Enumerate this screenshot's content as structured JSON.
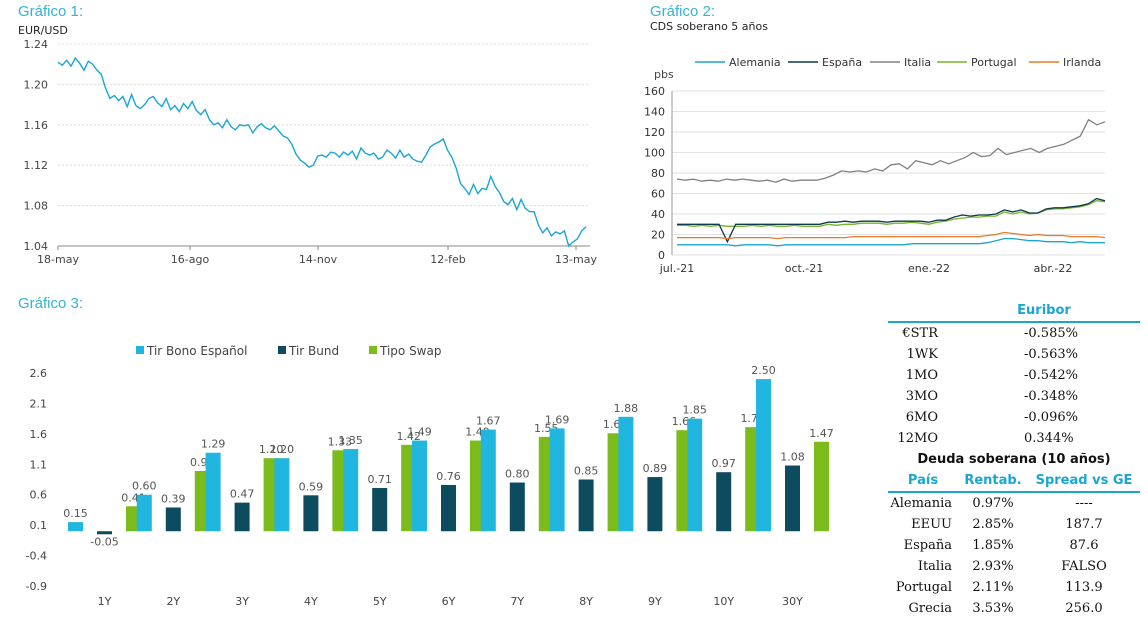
{
  "panels": {
    "g1_title": "Gráfico 1:",
    "g1_sub": "EUR/USD",
    "g2_title": "Gráfico 2:",
    "g2_sub": "CDS soberano 5 años",
    "g3_title": "Gráfico 3:"
  },
  "chart_data": [
    {
      "type": "line",
      "title": "EUR/USD",
      "y_ticks": [
        "1.24",
        "1.20",
        "1.16",
        "1.12",
        "1.08",
        "1.04"
      ],
      "ylim": [
        1.04,
        1.24
      ],
      "x_ticks": [
        "18-may",
        "16-ago",
        "14-nov",
        "12-feb",
        "13-may"
      ],
      "series": [
        {
          "color": "#1aa6d1",
          "values": [
            1.222,
            1.219,
            1.224,
            1.218,
            1.226,
            1.221,
            1.214,
            1.223,
            1.22,
            1.214,
            1.21,
            1.196,
            1.186,
            1.189,
            1.184,
            1.188,
            1.178,
            1.19,
            1.179,
            1.176,
            1.18,
            1.186,
            1.188,
            1.182,
            1.178,
            1.186,
            1.175,
            1.179,
            1.173,
            1.181,
            1.176,
            1.183,
            1.174,
            1.17,
            1.175,
            1.165,
            1.16,
            1.162,
            1.157,
            1.165,
            1.158,
            1.155,
            1.16,
            1.159,
            1.16,
            1.152,
            1.158,
            1.161,
            1.157,
            1.155,
            1.159,
            1.154,
            1.149,
            1.147,
            1.141,
            1.131,
            1.125,
            1.122,
            1.118,
            1.12,
            1.129,
            1.13,
            1.128,
            1.133,
            1.132,
            1.128,
            1.133,
            1.13,
            1.134,
            1.126,
            1.137,
            1.132,
            1.13,
            1.132,
            1.126,
            1.128,
            1.135,
            1.132,
            1.127,
            1.135,
            1.128,
            1.131,
            1.126,
            1.124,
            1.123,
            1.13,
            1.138,
            1.141,
            1.143,
            1.146,
            1.135,
            1.128,
            1.117,
            1.102,
            1.097,
            1.091,
            1.101,
            1.092,
            1.097,
            1.096,
            1.109,
            1.099,
            1.093,
            1.084,
            1.081,
            1.087,
            1.076,
            1.086,
            1.077,
            1.074,
            1.074,
            1.061,
            1.053,
            1.058,
            1.05,
            1.054,
            1.052,
            1.055,
            1.04,
            1.044,
            1.047,
            1.055,
            1.059
          ]
        }
      ]
    },
    {
      "type": "line",
      "title": "CDS soberano 5 años",
      "ylabel": "pbs",
      "y_ticks": [
        "160",
        "140",
        "120",
        "100",
        "80",
        "60",
        "40",
        "20",
        "0"
      ],
      "ylim": [
        0,
        160
      ],
      "x_ticks": [
        "jul.-21",
        "oct.-21",
        "ene.-22",
        "abr.-22"
      ],
      "series": [
        {
          "name": "Alemania",
          "color": "#1aa6d1",
          "values": [
            10,
            10,
            10,
            10,
            10,
            10,
            10,
            9,
            10,
            10,
            10,
            10,
            9,
            10,
            10,
            10,
            10,
            10,
            10,
            10,
            10,
            10,
            10,
            10,
            10,
            10,
            10,
            10,
            11,
            11,
            11,
            11,
            11,
            11,
            11,
            11,
            11,
            12,
            14,
            16,
            16,
            15,
            14,
            14,
            13,
            13,
            13,
            12,
            13,
            12,
            12,
            12
          ]
        },
        {
          "name": "España",
          "color": "#0d3b4c",
          "values": [
            30,
            30,
            30,
            30,
            30,
            30,
            13,
            30,
            30,
            30,
            30,
            30,
            30,
            30,
            30,
            30,
            30,
            30,
            32,
            32,
            33,
            32,
            33,
            33,
            33,
            32,
            33,
            33,
            33,
            33,
            32,
            34,
            34,
            37,
            39,
            38,
            39,
            39,
            40,
            44,
            42,
            44,
            41,
            41,
            45,
            46,
            46,
            47,
            48,
            50,
            55,
            53
          ]
        },
        {
          "name": "Italia",
          "color": "#808080",
          "values": [
            74,
            73,
            74,
            72,
            73,
            72,
            74,
            73,
            74,
            73,
            72,
            73,
            71,
            74,
            72,
            73,
            73,
            73,
            75,
            78,
            82,
            81,
            82,
            81,
            84,
            82,
            88,
            89,
            84,
            92,
            90,
            88,
            92,
            89,
            92,
            95,
            100,
            96,
            97,
            104,
            98,
            100,
            102,
            104,
            100,
            104,
            106,
            108,
            112,
            116,
            132,
            127,
            130
          ]
        },
        {
          "name": "Portugal",
          "color": "#7ab32e",
          "values": [
            29,
            29,
            28,
            29,
            28,
            29,
            28,
            28,
            28,
            29,
            28,
            29,
            28,
            28,
            29,
            28,
            28,
            28,
            30,
            29,
            30,
            30,
            31,
            31,
            31,
            30,
            31,
            31,
            32,
            31,
            30,
            32,
            33,
            35,
            36,
            37,
            37,
            38,
            38,
            42,
            40,
            42,
            40,
            41,
            44,
            45,
            45,
            46,
            47,
            49,
            53,
            52
          ]
        },
        {
          "name": "Irlanda",
          "color": "#e97a2c",
          "values": [
            17,
            17,
            17,
            17,
            17,
            17,
            16,
            17,
            17,
            17,
            17,
            17,
            16,
            17,
            17,
            17,
            17,
            17,
            17,
            17,
            17,
            18,
            18,
            18,
            18,
            18,
            18,
            18,
            18,
            18,
            18,
            18,
            18,
            18,
            18,
            18,
            18,
            19,
            20,
            22,
            21,
            20,
            19,
            20,
            19,
            19,
            19,
            18,
            18,
            18,
            18,
            17
          ]
        }
      ]
    },
    {
      "type": "bar",
      "categories": [
        "1Y",
        "2Y",
        "3Y",
        "4Y",
        "5Y",
        "6Y",
        "7Y",
        "8Y",
        "9Y",
        "10Y",
        "30Y"
      ],
      "y_ticks": [
        "2.6",
        "2.1",
        "1.6",
        "1.1",
        "0.6",
        "0.1",
        "-0.4",
        "-0.9"
      ],
      "ylim": [
        -0.9,
        2.6
      ],
      "series": [
        {
          "name": "Tir Bono Español",
          "color": "#21b6e0",
          "values": [
            0.15,
            0.6,
            1.29,
            1.2,
            1.35,
            1.49,
            1.67,
            1.69,
            1.88,
            1.85,
            2.5
          ],
          "labels": [
            "0.15",
            "0.60",
            "1.29",
            "1.20",
            "1.35",
            "1.49",
            "1.67",
            "1.69",
            "1.88",
            "1.85",
            "2.50"
          ]
        },
        {
          "name": "Tir Bund",
          "color": "#0d4b5e",
          "values": [
            -0.05,
            0.39,
            0.47,
            0.59,
            0.71,
            0.76,
            0.8,
            0.85,
            0.89,
            0.97,
            1.08
          ],
          "labels": [
            "-0.05",
            "0.39",
            "0.47",
            "0.59",
            "0.71",
            "0.76",
            "0.80",
            "0.85",
            "0.89",
            "0.97",
            "1.08"
          ]
        },
        {
          "name": "Tipo Swap",
          "color": "#7cbb1c",
          "values": [
            0.41,
            0.99,
            1.2,
            1.33,
            1.42,
            1.49,
            1.55,
            1.61,
            1.66,
            1.71,
            1.47
          ],
          "labels": [
            "0.41",
            "0.99",
            "1.20",
            "1.33",
            "1.42",
            "1.49",
            "1.55",
            "1.61",
            "1.66",
            "1.71",
            "1.47"
          ]
        }
      ]
    }
  ],
  "euribor": {
    "title": "Euribor",
    "rows": [
      {
        "label": "€STR",
        "value": "-0.585%"
      },
      {
        "label": "1WK",
        "value": "-0.563%"
      },
      {
        "label": "1MO",
        "value": "-0.542%"
      },
      {
        "label": "3MO",
        "value": "-0.348%"
      },
      {
        "label": "6MO",
        "value": "-0.096%"
      },
      {
        "label": "12MO",
        "value": "0.344%"
      }
    ]
  },
  "deuda": {
    "title": "Deuda soberana (10 años)",
    "headers": [
      "País",
      "Rentab.",
      "Spread vs GE"
    ],
    "rows": [
      {
        "pais": "Alemania",
        "rentab": "0.97%",
        "spread": "----"
      },
      {
        "pais": "EEUU",
        "rentab": "2.85%",
        "spread": "187.7"
      },
      {
        "pais": "España",
        "rentab": "1.85%",
        "spread": "87.6"
      },
      {
        "pais": "Italia",
        "rentab": "2.93%",
        "spread": "FALSO"
      },
      {
        "pais": "Portugal",
        "rentab": "2.11%",
        "spread": "113.9"
      },
      {
        "pais": "Grecia",
        "rentab": "3.53%",
        "spread": "256.0"
      }
    ]
  }
}
